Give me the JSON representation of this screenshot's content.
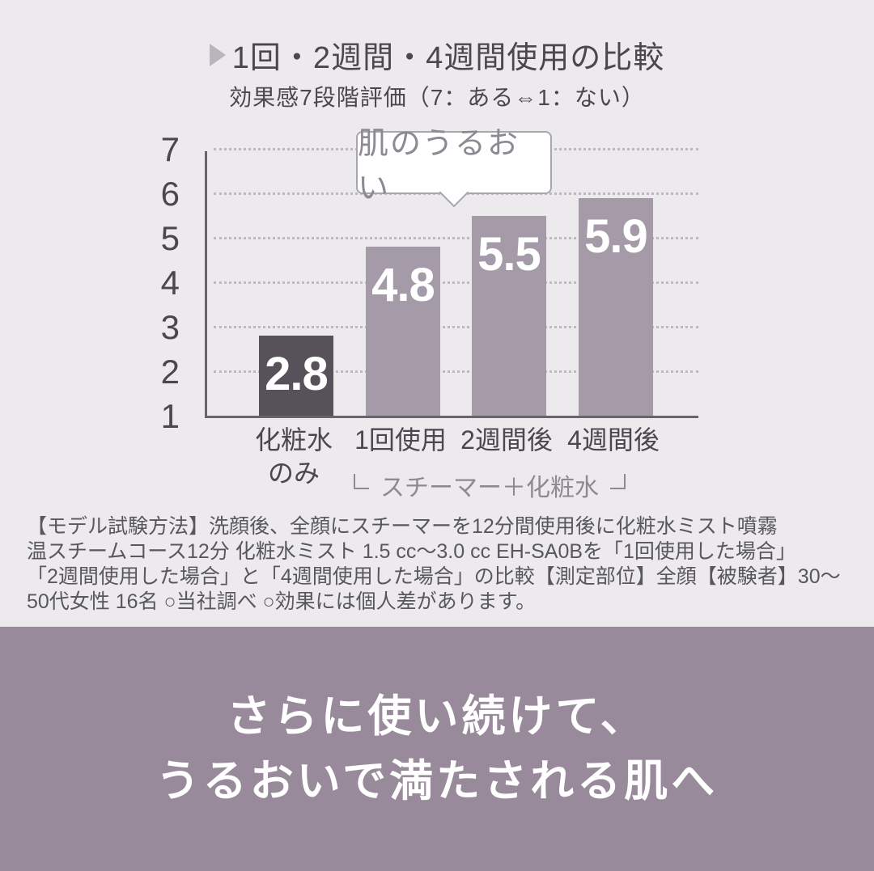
{
  "colors": {
    "background": "#eceaed",
    "banner_bg": "#998a9b",
    "banner_text": "#ffffff",
    "bar_highlight": "#575259",
    "bar_default": "#a59ba8",
    "axis": "#67646a",
    "text_dark": "#4a484c",
    "text_muted": "#8e8a93"
  },
  "chart_data": {
    "type": "bar",
    "title": "1回・2週間・4週間使用の比較",
    "subtitle": "効果感7段階評価（7：ある⇔1：ない）",
    "callout_label": "肌のうるおい",
    "categories": [
      "化粧水のみ",
      "1回使用",
      "2週間後",
      "4週間後"
    ],
    "category_lines": [
      [
        "化粧水",
        "のみ"
      ],
      [
        "1回使用"
      ],
      [
        "2週間後"
      ],
      [
        "4週間後"
      ]
    ],
    "values": [
      2.8,
      4.8,
      5.5,
      5.9
    ],
    "value_labels": [
      "2.8",
      "4.8",
      "5.5",
      "5.9"
    ],
    "bar_styles": [
      "highlight",
      "default",
      "default",
      "default"
    ],
    "ylim": [
      1,
      7
    ],
    "yticks": [
      1,
      2,
      3,
      4,
      5,
      6,
      7
    ],
    "xlabel": "",
    "ylabel": "",
    "grid": "dotted horizontal gridlines at 2-7, solid axes left and bottom",
    "legend": "none",
    "group_label": "スチーマー＋化粧水",
    "group_span_categories": [
      "1回使用",
      "2週間後",
      "4週間後"
    ]
  },
  "footnote": {
    "lines": [
      "【モデル試験方法】洗顔後、全顔にスチーマーを12分間使用後に化粧水ミスト噴霧",
      "温スチームコース12分 化粧水ミスト 1.5 cc～3.0 cc EH-SA0Bを「1回使用した場合」",
      "「2週間使用した場合」と「4週間使用した場合」の比較【測定部位】全顔【被験者】30～",
      "50代女性 16名 ○当社調べ ○効果には個人差があります。"
    ]
  },
  "banner": {
    "lines": [
      "さらに使い続けて、",
      "うるおいで満たされる肌へ"
    ]
  }
}
